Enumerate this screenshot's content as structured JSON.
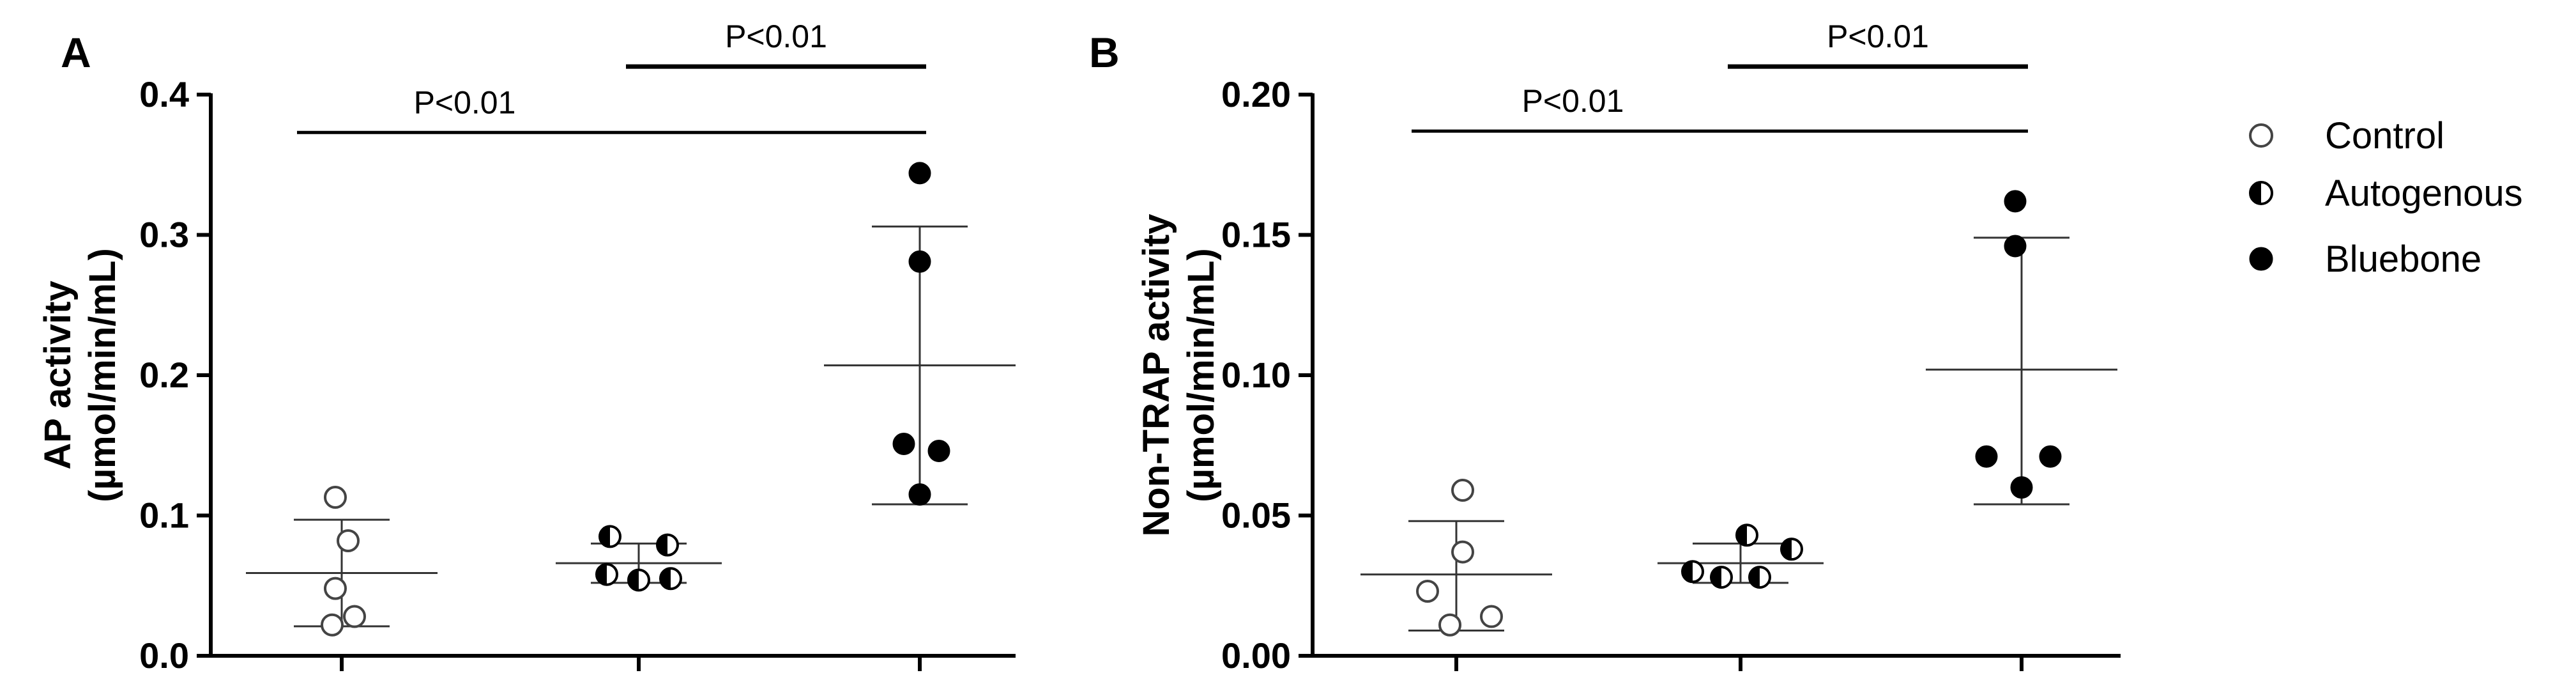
{
  "chart_data": [
    {
      "type": "scatter",
      "panel": "A",
      "ylabel_line1": "AP activity",
      "ylabel_line2": "(µmol/min/mL)",
      "ylim": [
        0,
        0.4
      ],
      "yticks": [
        "0.0",
        "0.1",
        "0.2",
        "0.3",
        "0.4"
      ],
      "tick_values": [
        0,
        0.1,
        0.2,
        0.3,
        0.4
      ],
      "groups": [
        {
          "name": "Control",
          "marker": "open",
          "values": [
            0.113,
            0.082,
            0.048,
            0.028,
            0.022
          ],
          "mean": 0.059,
          "sd_low": 0.021,
          "sd_high": 0.097
        },
        {
          "name": "Autogenous",
          "marker": "half",
          "values": [
            0.085,
            0.079,
            0.058,
            0.054,
            0.055
          ],
          "mean": 0.066,
          "sd_low": 0.052,
          "sd_high": 0.08
        },
        {
          "name": "Bluebone",
          "marker": "filled",
          "values": [
            0.344,
            0.281,
            0.151,
            0.146,
            0.115
          ],
          "mean": 0.207,
          "sd_low": 0.108,
          "sd_high": 0.306
        }
      ],
      "annotations": [
        {
          "text": "P<0.01",
          "from_group": 0,
          "to_group": 2,
          "level": 0.373
        },
        {
          "text": "P<0.01",
          "from_group": 1,
          "to_group": 2,
          "level": 0.42
        }
      ]
    },
    {
      "type": "scatter",
      "panel": "B",
      "ylabel_line1": "Non-TRAP activity",
      "ylabel_line2": "(µmol/min/mL)",
      "ylim": [
        0,
        0.2
      ],
      "yticks": [
        "0.00",
        "0.05",
        "0.10",
        "0.15",
        "0.20"
      ],
      "tick_values": [
        0,
        0.05,
        0.1,
        0.15,
        0.2
      ],
      "groups": [
        {
          "name": "Control",
          "marker": "open",
          "values": [
            0.059,
            0.037,
            0.023,
            0.014,
            0.011
          ],
          "mean": 0.029,
          "sd_low": 0.009,
          "sd_high": 0.048
        },
        {
          "name": "Autogenous",
          "marker": "half",
          "values": [
            0.043,
            0.038,
            0.03,
            0.028,
            0.028
          ],
          "mean": 0.033,
          "sd_low": 0.026,
          "sd_high": 0.04
        },
        {
          "name": "Bluebone",
          "marker": "filled",
          "values": [
            0.162,
            0.146,
            0.071,
            0.071,
            0.06
          ],
          "mean": 0.102,
          "sd_low": 0.054,
          "sd_high": 0.149
        }
      ],
      "annotations": [
        {
          "text": "P<0.01",
          "from_group": 0,
          "to_group": 2,
          "level": 0.187
        },
        {
          "text": "P<0.01",
          "from_group": 1,
          "to_group": 2,
          "level": 0.21
        }
      ]
    }
  ],
  "legend": {
    "placement": "right",
    "items": [
      {
        "label": "Control",
        "marker": "open"
      },
      {
        "label": "Autogenous",
        "marker": "half"
      },
      {
        "label": "Bluebone",
        "marker": "filled"
      }
    ]
  }
}
